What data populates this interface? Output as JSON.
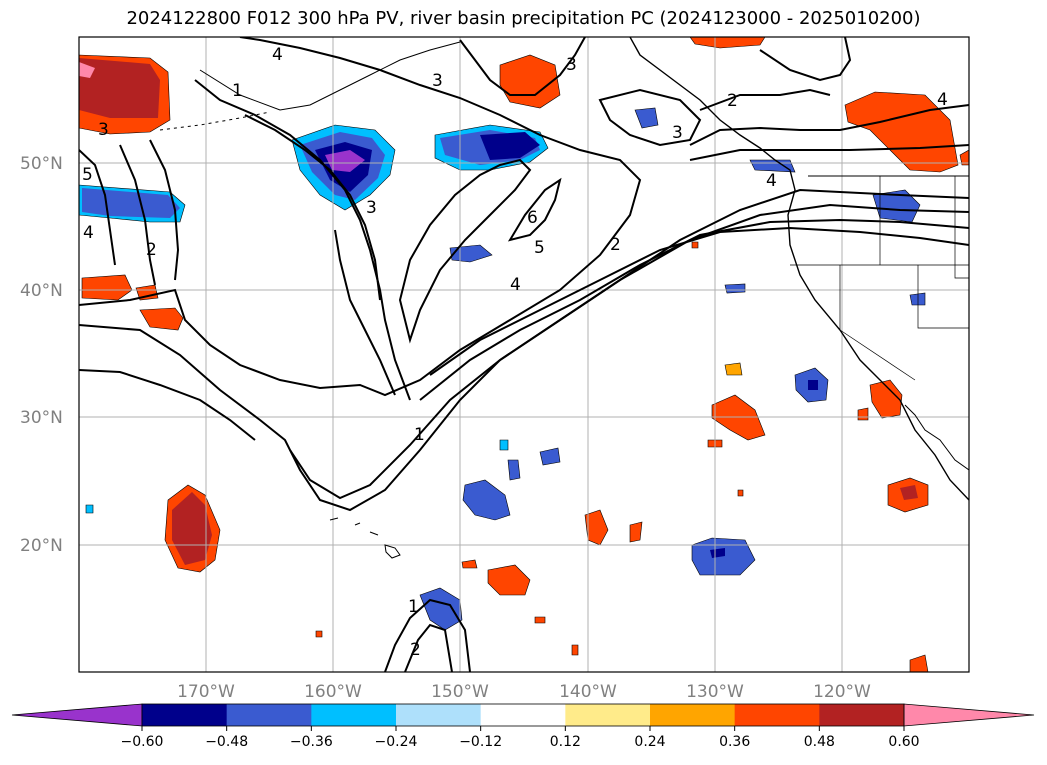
{
  "title": "2024122800 F012 300 hPa PV, river basin precipitation PC (2024123000 - 2025010200)",
  "map": {
    "lat_labels": [
      "50°N",
      "40°N",
      "30°N",
      "20°N"
    ],
    "lon_labels": [
      "170°W",
      "160°W",
      "150°W",
      "140°W",
      "130°W",
      "120°W"
    ],
    "extent": {
      "lon_min": -180,
      "lon_max": -110,
      "lat_min": 10,
      "lat_max": 60
    },
    "grid": true,
    "contour_labels": [
      "1",
      "2",
      "3",
      "4",
      "5",
      "6"
    ]
  },
  "colorbar": {
    "ticks": [
      "−0.60",
      "−0.48",
      "−0.36",
      "−0.24",
      "−0.12",
      "0.12",
      "0.24",
      "0.36",
      "0.48",
      "0.60"
    ],
    "colors": [
      "#9933cc",
      "#00008b",
      "#3a5bd0",
      "#00bfff",
      "#aee0fb",
      "#ffffff",
      "#ffeb8a",
      "#ffa500",
      "#ff4500",
      "#b22222",
      "#ff88aa"
    ]
  }
}
